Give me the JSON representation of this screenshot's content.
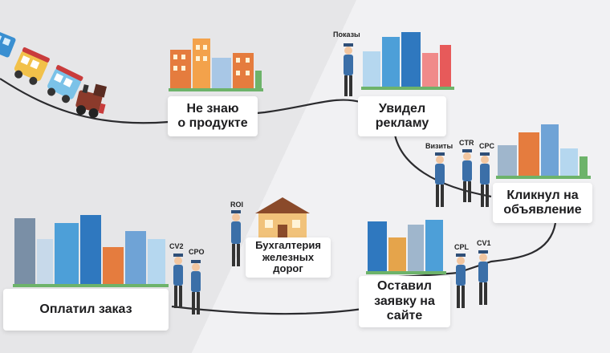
{
  "stages": [
    {
      "id": "unaware",
      "label": "Не знаю\nо продукте"
    },
    {
      "id": "saw_ad",
      "label": "Увидел\nрекламу"
    },
    {
      "id": "clicked",
      "label": "Кликнул на\nобъявление"
    },
    {
      "id": "left_request",
      "label": "Оставил\nзаявку на\nсайте"
    },
    {
      "id": "paid",
      "label": "Оплатил заказ"
    },
    {
      "id": "accounting",
      "label": "Бухгалтерия\nжелезных\nдорог"
    }
  ],
  "metrics": {
    "impressions": "Показы",
    "visits": "Визиты",
    "ctr": "CTR",
    "cpc": "CPC",
    "roi": "ROI",
    "cpl": "CPL",
    "cv1": "CV1",
    "cv2": "CV2",
    "cpo": "CPO"
  },
  "colors": {
    "bg_left": "#e6e6e8",
    "bg_right": "#f1f1f3",
    "track": "#2b2b2e",
    "uniform": "#3b6fa8",
    "cap": "#2f4f78"
  },
  "icons": [
    "steam-train-icon",
    "city-buildings-icon",
    "house-icon",
    "inspector-icon"
  ]
}
